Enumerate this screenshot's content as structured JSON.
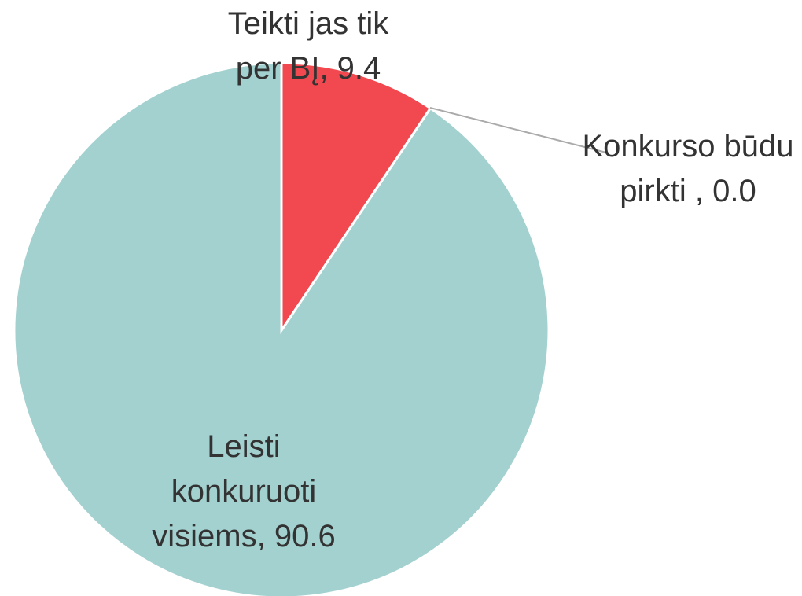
{
  "chart_data": {
    "type": "pie",
    "values": [
      9.4,
      0.0,
      90.6
    ],
    "value_labels": [
      "Teikti jas tik per BĮ, 9.4",
      "Konkurso būdu pirkti , 0.0",
      "Leisti konkuruoti visiems, 90.6"
    ],
    "colors": [
      "#f2484f",
      "#9e9e9e",
      "#a3d1d0"
    ]
  }
}
